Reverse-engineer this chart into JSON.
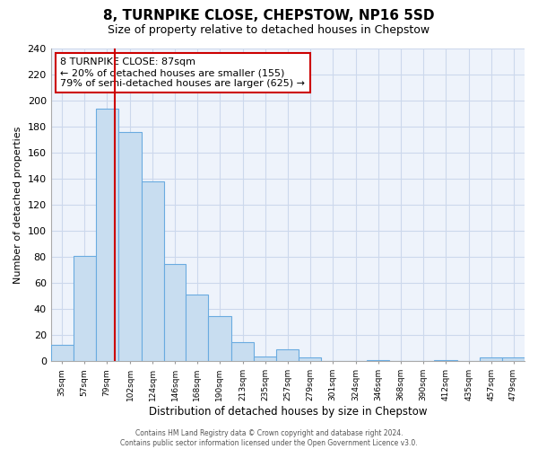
{
  "title": "8, TURNPIKE CLOSE, CHEPSTOW, NP16 5SD",
  "subtitle": "Size of property relative to detached houses in Chepstow",
  "xlabel": "Distribution of detached houses by size in Chepstow",
  "ylabel": "Number of detached properties",
  "bar_color": "#c8ddf0",
  "bar_edge_color": "#6aabe0",
  "bin_labels": [
    "35sqm",
    "57sqm",
    "79sqm",
    "102sqm",
    "124sqm",
    "146sqm",
    "168sqm",
    "190sqm",
    "213sqm",
    "235sqm",
    "257sqm",
    "279sqm",
    "301sqm",
    "324sqm",
    "346sqm",
    "368sqm",
    "390sqm",
    "412sqm",
    "435sqm",
    "457sqm",
    "479sqm"
  ],
  "bar_heights": [
    13,
    81,
    194,
    176,
    138,
    75,
    51,
    35,
    15,
    4,
    9,
    3,
    0,
    0,
    1,
    0,
    0,
    1,
    0,
    3,
    3
  ],
  "ylim": [
    0,
    240
  ],
  "yticks": [
    0,
    20,
    40,
    60,
    80,
    100,
    120,
    140,
    160,
    180,
    200,
    220,
    240
  ],
  "bin_centers": [
    35,
    57,
    79,
    102,
    124,
    146,
    168,
    190,
    213,
    235,
    257,
    279,
    301,
    324,
    346,
    368,
    390,
    412,
    435,
    457,
    479
  ],
  "property_line_x": 87,
  "annotation_title": "8 TURNPIKE CLOSE: 87sqm",
  "annotation_line1": "← 20% of detached houses are smaller (155)",
  "annotation_line2": "79% of semi-detached houses are larger (625) →",
  "annotation_box_color": "#ffffff",
  "annotation_box_edge": "#cc0000",
  "vline_color": "#cc0000",
  "footer_line1": "Contains HM Land Registry data © Crown copyright and database right 2024.",
  "footer_line2": "Contains public sector information licensed under the Open Government Licence v3.0.",
  "background_color": "#ffffff",
  "grid_color": "#ccd8ec",
  "plot_bg_color": "#eef3fb"
}
